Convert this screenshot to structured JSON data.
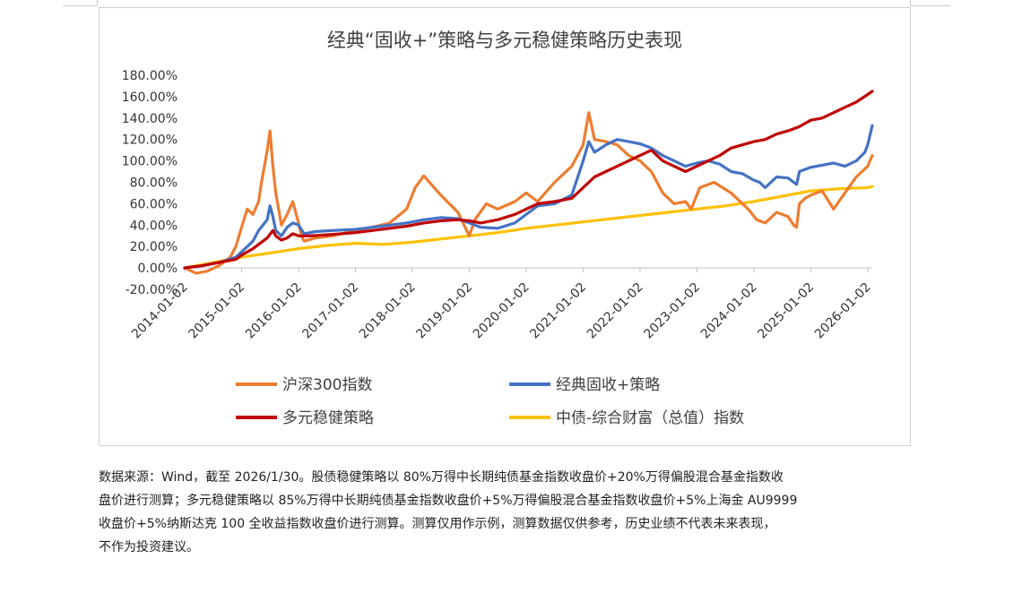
{
  "chart_data": {
    "type": "line",
    "title": "经典“固收+”策略与多元稳健策略历史表现",
    "y_tick_labels": [
      "180.00%",
      "160.00%",
      "140.00%",
      "120.00%",
      "100.00%",
      "80.00%",
      "60.00%",
      "40.00%",
      "20.00%",
      "0.00%",
      "-20.00%"
    ],
    "ylim": [
      -20,
      180
    ],
    "x_tick_labels": [
      "2014-01-02",
      "2015-01-02",
      "2016-01-02",
      "2017-01-02",
      "2018-01-02",
      "2019-01-02",
      "2020-01-02",
      "2021-01-02",
      "2022-01-02",
      "2023-01-02",
      "2024-01-02",
      "2025-01-02",
      "2026-01-02"
    ],
    "xlim": [
      2014.0,
      2026.08
    ],
    "legend_position": "bottom",
    "series": [
      {
        "name": "沪深300指数",
        "color": "#ED7D31",
        "x": [
          2014.0,
          2014.2,
          2014.4,
          2014.6,
          2014.8,
          2014.9,
          2015.0,
          2015.1,
          2015.2,
          2015.3,
          2015.35,
          2015.45,
          2015.5,
          2015.55,
          2015.6,
          2015.65,
          2015.7,
          2015.8,
          2015.9,
          2016.0,
          2016.05,
          2016.1,
          2016.3,
          2016.6,
          2017.0,
          2017.3,
          2017.6,
          2017.9,
          2018.05,
          2018.2,
          2018.5,
          2018.8,
          2019.0,
          2019.1,
          2019.3,
          2019.5,
          2019.8,
          2020.0,
          2020.2,
          2020.5,
          2020.8,
          2021.0,
          2021.1,
          2021.2,
          2021.4,
          2021.6,
          2021.8,
          2022.0,
          2022.2,
          2022.4,
          2022.6,
          2022.8,
          2022.9,
          2023.05,
          2023.3,
          2023.6,
          2023.9,
          2024.05,
          2024.2,
          2024.4,
          2024.6,
          2024.7,
          2024.75,
          2024.8,
          2024.9,
          2025.0,
          2025.2,
          2025.4,
          2025.6,
          2025.8,
          2026.0,
          2026.08
        ],
        "y": [
          0,
          -5,
          -3,
          2,
          10,
          20,
          38,
          55,
          50,
          62,
          80,
          110,
          128,
          95,
          70,
          55,
          40,
          50,
          62,
          42,
          30,
          25,
          28,
          30,
          35,
          38,
          42,
          55,
          75,
          86,
          68,
          52,
          30,
          45,
          60,
          55,
          62,
          70,
          62,
          80,
          95,
          115,
          145,
          120,
          118,
          115,
          105,
          100,
          90,
          70,
          60,
          62,
          55,
          75,
          80,
          70,
          55,
          45,
          42,
          52,
          48,
          40,
          38,
          60,
          65,
          68,
          72,
          55,
          70,
          85,
          95,
          105
        ]
      },
      {
        "name": "经典固收+策略",
        "color": "#4472C4",
        "x": [
          2014.0,
          2014.3,
          2014.6,
          2014.9,
          2015.0,
          2015.2,
          2015.3,
          2015.45,
          2015.5,
          2015.55,
          2015.6,
          2015.7,
          2015.8,
          2015.9,
          2016.0,
          2016.1,
          2016.3,
          2016.6,
          2017.0,
          2017.3,
          2017.6,
          2017.9,
          2018.2,
          2018.5,
          2018.8,
          2019.0,
          2019.2,
          2019.5,
          2019.8,
          2020.0,
          2020.2,
          2020.5,
          2020.8,
          2021.0,
          2021.1,
          2021.2,
          2021.4,
          2021.6,
          2021.8,
          2022.0,
          2022.2,
          2022.4,
          2022.6,
          2022.8,
          2023.0,
          2023.2,
          2023.4,
          2023.6,
          2023.8,
          2024.0,
          2024.1,
          2024.2,
          2024.4,
          2024.6,
          2024.7,
          2024.75,
          2024.8,
          2025.0,
          2025.2,
          2025.4,
          2025.6,
          2025.8,
          2025.95,
          2026.0,
          2026.08
        ],
        "y": [
          0,
          2,
          5,
          10,
          15,
          25,
          35,
          45,
          58,
          48,
          35,
          30,
          38,
          42,
          40,
          32,
          34,
          35,
          36,
          38,
          40,
          42,
          45,
          47,
          46,
          42,
          38,
          37,
          42,
          50,
          58,
          60,
          68,
          100,
          118,
          108,
          115,
          120,
          118,
          116,
          112,
          105,
          100,
          95,
          98,
          100,
          97,
          90,
          88,
          82,
          80,
          75,
          85,
          84,
          80,
          78,
          90,
          94,
          96,
          98,
          95,
          100,
          108,
          115,
          133
        ]
      },
      {
        "name": "多元稳健策略",
        "color": "#C00000",
        "x": [
          2014.0,
          2014.3,
          2014.6,
          2014.9,
          2015.0,
          2015.2,
          2015.3,
          2015.45,
          2015.55,
          2015.6,
          2015.7,
          2015.8,
          2015.9,
          2016.0,
          2016.2,
          2016.5,
          2017.0,
          2017.3,
          2017.6,
          2017.9,
          2018.2,
          2018.5,
          2018.8,
          2019.0,
          2019.2,
          2019.5,
          2019.8,
          2020.0,
          2020.2,
          2020.5,
          2020.8,
          2021.0,
          2021.2,
          2021.4,
          2021.6,
          2021.8,
          2022.0,
          2022.2,
          2022.4,
          2022.6,
          2022.8,
          2023.0,
          2023.2,
          2023.4,
          2023.6,
          2023.8,
          2024.0,
          2024.2,
          2024.4,
          2024.6,
          2024.8,
          2025.0,
          2025.2,
          2025.4,
          2025.6,
          2025.8,
          2026.0,
          2026.08
        ],
        "y": [
          0,
          2,
          5,
          8,
          12,
          18,
          22,
          28,
          35,
          30,
          26,
          28,
          32,
          30,
          30,
          31,
          33,
          35,
          37,
          39,
          42,
          44,
          45,
          44,
          42,
          45,
          50,
          55,
          60,
          62,
          65,
          75,
          85,
          90,
          95,
          100,
          105,
          110,
          100,
          95,
          90,
          95,
          100,
          105,
          112,
          115,
          118,
          120,
          125,
          128,
          132,
          138,
          140,
          145,
          150,
          155,
          162,
          165
        ]
      },
      {
        "name": "中债-综合财富（总值）指数",
        "color": "#FFC000",
        "x": [
          2014.0,
          2014.5,
          2015.0,
          2015.5,
          2016.0,
          2016.5,
          2017.0,
          2017.5,
          2018.0,
          2018.5,
          2019.0,
          2019.5,
          2020.0,
          2020.5,
          2021.0,
          2021.5,
          2022.0,
          2022.5,
          2023.0,
          2023.5,
          2024.0,
          2024.5,
          2025.0,
          2025.5,
          2026.0,
          2026.08
        ],
        "y": [
          0,
          5,
          10,
          14,
          18,
          21,
          23,
          22,
          24,
          27,
          30,
          33,
          37,
          40,
          43,
          46,
          49,
          52,
          55,
          58,
          62,
          67,
          72,
          74,
          75,
          76
        ]
      }
    ]
  },
  "footnote": {
    "lines": [
      "数据来源：Wind，截至 2026/1/30。股债稳健策略以 80%万得中长期纯债基金指数收盘价+20%万得偏股混合基金指数收",
      "盘价进行测算；多元稳健策略以 85%万得中长期纯债基金指数收盘价+5%万得偏股混合基金指数收盘价+5%上海金 AU9999",
      "收盘价+5%纳斯达克 100 全收益指数收盘价进行测算。测算仅用作示例，测算数据仅供参考，历史业绩不代表未来表现，",
      "不作为投资建议。"
    ]
  }
}
